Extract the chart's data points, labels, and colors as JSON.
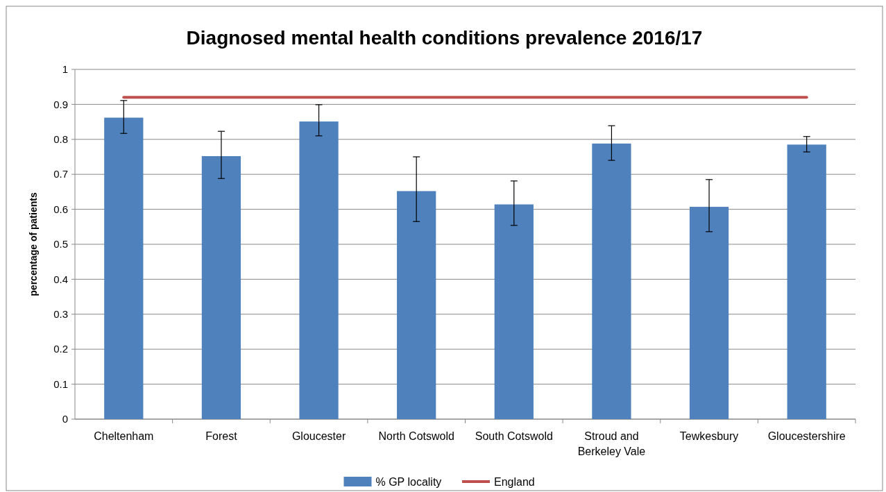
{
  "chart_data": {
    "type": "bar",
    "title": "Diagnosed mental health conditions prevalence 2016/17",
    "ylabel": "percentage of patients",
    "categories": [
      "Cheltenham",
      "Forest",
      "Gloucester",
      "North Cotswold",
      "South Cotswold",
      "Stroud and Berkeley Vale",
      "Tewkesbury",
      "Gloucestershire"
    ],
    "series": [
      {
        "name": "% GP locality",
        "color": "#4f81bd",
        "values": [
          0.862,
          0.752,
          0.851,
          0.652,
          0.614,
          0.788,
          0.607,
          0.785
        ],
        "errors": [
          [
            0.817,
            0.911
          ],
          [
            0.688,
            0.823
          ],
          [
            0.81,
            0.899
          ],
          [
            0.565,
            0.75
          ],
          [
            0.554,
            0.681
          ],
          [
            0.74,
            0.839
          ],
          [
            0.536,
            0.685
          ],
          [
            0.764,
            0.808
          ]
        ]
      },
      {
        "name": "England",
        "type": "line",
        "color": "#c0504d",
        "values": [
          0.92,
          0.92,
          0.92,
          0.92,
          0.92,
          0.92,
          0.92,
          0.92
        ]
      }
    ],
    "ylim": [
      0,
      1
    ],
    "yticks": [
      0,
      0.1,
      0.2,
      0.3,
      0.4,
      0.5,
      0.6,
      0.7,
      0.8,
      0.9,
      1
    ],
    "grid": "y",
    "legend": "bottom",
    "marker": "none"
  }
}
